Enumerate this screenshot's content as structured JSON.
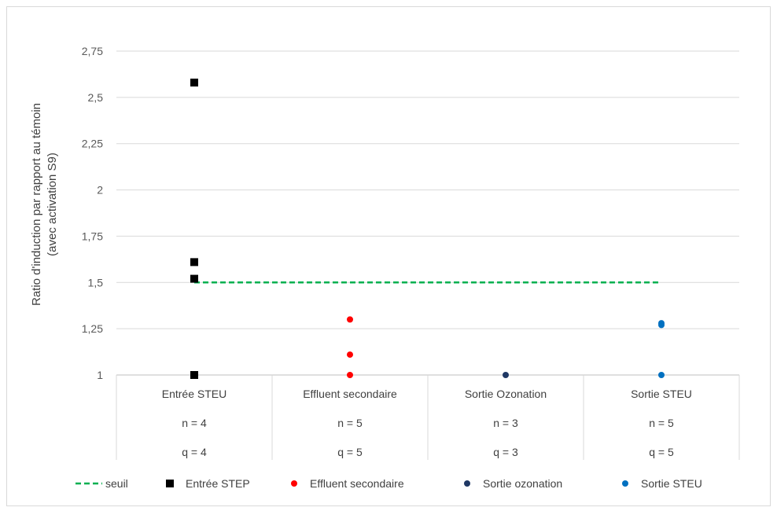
{
  "chart_data": {
    "type": "scatter",
    "ylabel": "Ratio d'induction par rapport au témoin (avec activation S9)",
    "ylabel_lines": [
      "Ratio d'induction par rapport au témoin",
      "(avec activation S9)"
    ],
    "ylim": [
      1,
      2.75
    ],
    "yticks": [
      "1",
      "1,25",
      "1,5",
      "1,75",
      "2",
      "2,25",
      "2,5",
      "2,75"
    ],
    "ytick_values": [
      1,
      1.25,
      1.5,
      1.75,
      2,
      2.25,
      2.5,
      2.75
    ],
    "grid": true,
    "categories": [
      "Entrée STEU",
      "Effluent secondaire",
      "Sortie Ozonation",
      "Sortie STEU"
    ],
    "category_n": [
      "n = 4",
      "n = 5",
      "n = 3",
      "n = 5"
    ],
    "category_q": [
      "q = 4",
      "q = 5",
      "q = 3",
      "q = 5"
    ],
    "threshold": {
      "name": "seuil",
      "value": 1.5,
      "color": "#00b050",
      "style": "dashed"
    },
    "series": [
      {
        "name": "Entrée STEP",
        "category": 0,
        "marker": "square",
        "color": "#000000",
        "values": [
          2.58,
          1.61,
          1.52,
          1.0
        ]
      },
      {
        "name": "Effluent secondaire",
        "category": 1,
        "marker": "circle",
        "color": "#ff0000",
        "values": [
          1.3,
          1.11,
          1.0
        ]
      },
      {
        "name": "Sortie ozonation",
        "category": 2,
        "marker": "circle",
        "color": "#1f3864",
        "values": [
          1.0
        ]
      },
      {
        "name": "Sortie STEU",
        "category": 3,
        "marker": "circle",
        "color": "#0070c0",
        "values": [
          1.28,
          1.27,
          1.0
        ]
      }
    ],
    "legend_position": "bottom"
  }
}
